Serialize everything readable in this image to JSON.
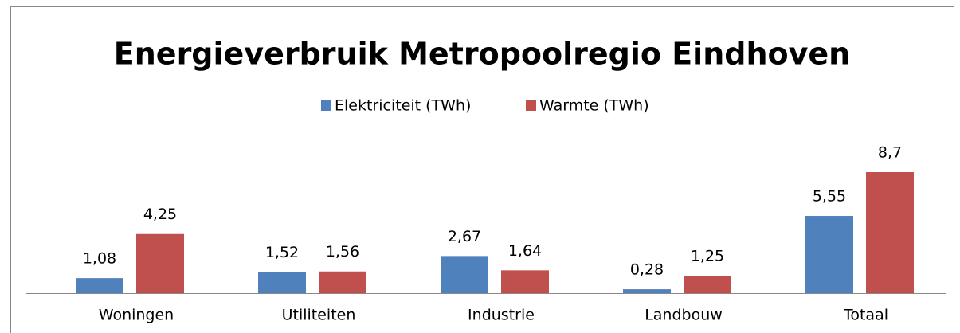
{
  "chart_data": {
    "type": "bar",
    "title": "Energieverbruik Metropoolregio Eindhoven",
    "categories": [
      "Woningen",
      "Utiliteiten",
      "Industrie",
      "Landbouw",
      "Totaal"
    ],
    "series": [
      {
        "name": "Elektriciteit (TWh)",
        "color": "#4f81bd",
        "values": [
          1.08,
          1.52,
          2.67,
          0.28,
          5.55
        ],
        "value_labels": [
          "1,08",
          "1,52",
          "2,67",
          "0,28",
          "5,55"
        ]
      },
      {
        "name": "Warmte (TWh)",
        "color": "#c0504d",
        "values": [
          4.25,
          1.56,
          1.64,
          1.25,
          8.7
        ],
        "value_labels": [
          "4,25",
          "1,56",
          "1,64",
          "1,25",
          "8,7"
        ]
      }
    ],
    "legend": "top"
  }
}
